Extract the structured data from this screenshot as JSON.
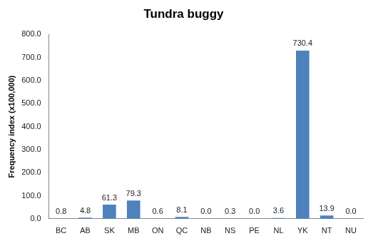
{
  "chart_data": {
    "type": "bar",
    "title": "Tundra buggy",
    "y_label": "Frequency index (x100,000)",
    "categories": [
      "BC",
      "AB",
      "SK",
      "MB",
      "ON",
      "QC",
      "NB",
      "NS",
      "PE",
      "NL",
      "YK",
      "NT",
      "NU"
    ],
    "values": [
      0.8,
      4.8,
      61.3,
      79.3,
      0.6,
      8.1,
      0,
      0.3,
      0,
      3.6,
      730.4,
      13.9,
      0
    ],
    "value_labels": [
      "0.8",
      "4.8",
      "61.3",
      "79.3",
      "0.6",
      "8.1",
      "0.0",
      "0.3",
      "0.0",
      "3.6",
      "730.4",
      "13.9",
      "0.0"
    ],
    "color": "#4f81bd",
    "ylim": [
      0,
      800
    ],
    "yticks": [
      {
        "value": 0,
        "label": "0.0"
      },
      {
        "value": 100,
        "label": "100.0"
      },
      {
        "value": 200,
        "label": "200.0"
      },
      {
        "value": 300,
        "label": "300.0"
      },
      {
        "value": 400,
        "label": "400.0"
      },
      {
        "value": 500,
        "label": "500.0"
      },
      {
        "value": 600,
        "label": "600.0"
      },
      {
        "value": 700,
        "label": "700.0"
      },
      {
        "value": 800,
        "label": "800.0"
      }
    ],
    "grid": false,
    "data_labels": true
  }
}
